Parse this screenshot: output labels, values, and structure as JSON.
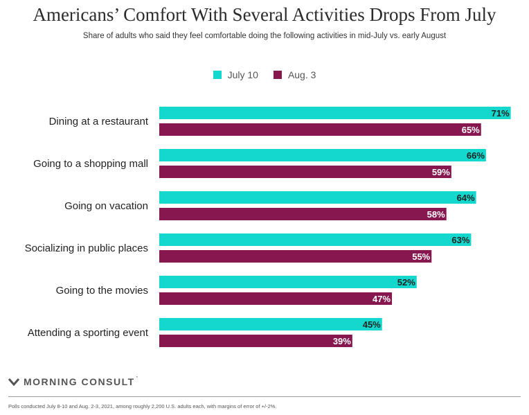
{
  "chart_data": {
    "type": "bar",
    "orientation": "horizontal",
    "title": "Americans’ Comfort With Several Activities Drops From July",
    "subtitle": "Share of adults who said they feel comfortable doing the following activities in mid-July vs. early August",
    "categories": [
      "Dining at a restaurant",
      "Going to a shopping mall",
      "Going on vacation",
      "Socializing in public places",
      "Going to the movies",
      "Attending a sporting event"
    ],
    "series": [
      {
        "name": "July 10",
        "color": "#14d8cd",
        "values": [
          71,
          66,
          64,
          63,
          52,
          45
        ]
      },
      {
        "name": "Aug. 3",
        "color": "#86174f",
        "values": [
          65,
          59,
          58,
          55,
          47,
          39
        ]
      }
    ],
    "value_suffix": "%",
    "xlim": [
      0,
      74
    ],
    "grid": false,
    "legend": "top-center"
  },
  "brand": {
    "name": "MORNING CONSULT",
    "mark": "’"
  },
  "footnote": "Polls conducted July 8-10 and Aug. 2-3, 2021, among roughly 2,200 U.S. adults each, with margins of error of +/-2%."
}
